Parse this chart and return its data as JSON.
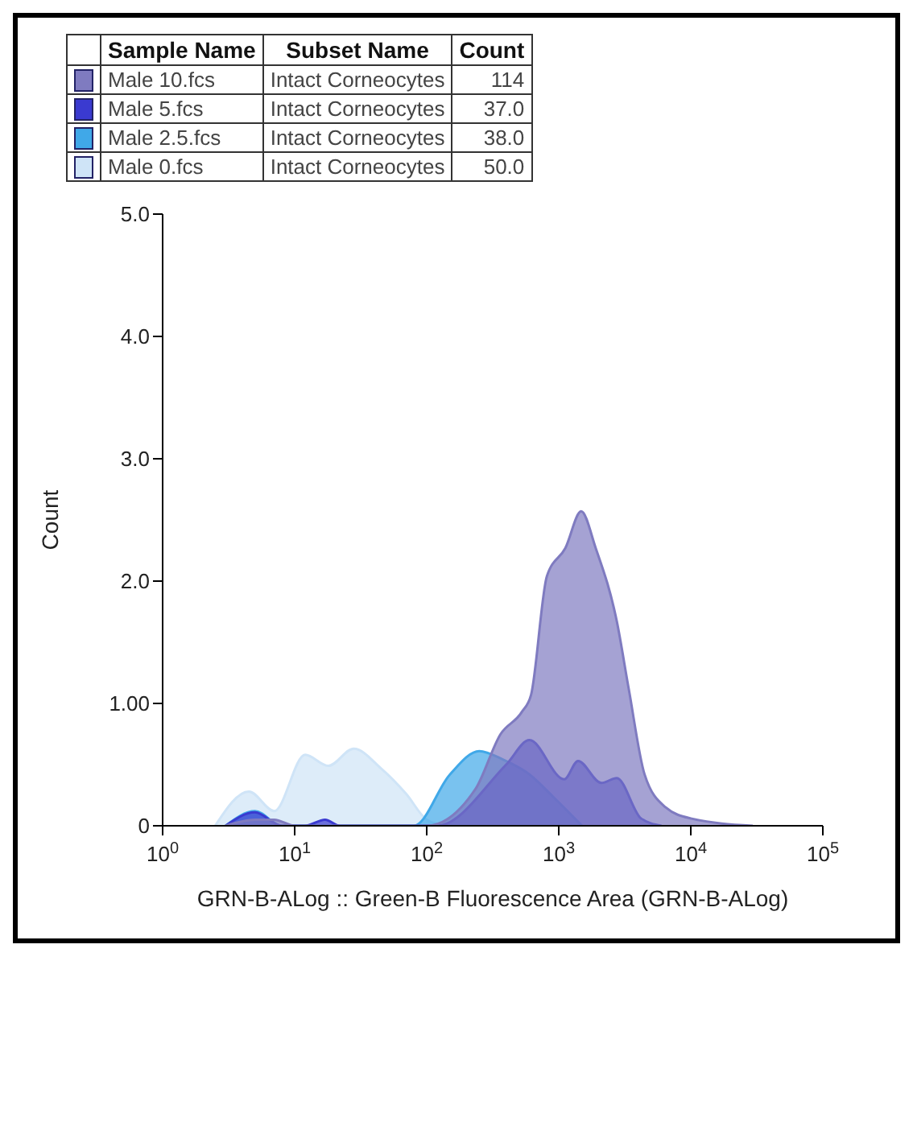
{
  "chart_data": {
    "type": "area",
    "xlabel": "GRN-B-ALog :: Green-B Fluorescence Area (GRN-B-ALog)",
    "ylabel": "Count",
    "log": "x",
    "legend": "top",
    "annotations": [
      "Sample Name",
      "Subset Name",
      "Count",
      "Intact Corneocytes",
      "114",
      "Intact Corneocytes",
      "37.0",
      "Intact Corneocytes",
      "38.0",
      "Intact Corneocytes",
      "50.0"
    ],
    "xlim": [
      1,
      100000
    ],
    "xticks": [
      {
        "value": 1,
        "label": "10$^{0}$"
      },
      {
        "value": 10,
        "label": "10$^{1}$"
      },
      {
        "value": 100,
        "label": "10$^{2}$"
      },
      {
        "value": 1000,
        "label": "10$^{3}$"
      },
      {
        "value": 10000,
        "label": "10$^{4}$"
      },
      {
        "value": 100000,
        "label": "10$^{5}$"
      }
    ],
    "ylim": [
      0,
      5
    ],
    "yticks": [
      0,
      {
        "value": 1,
        "label": "1.00"
      },
      {
        "value": 2,
        "label": "2.0"
      },
      {
        "value": 3,
        "label": "3.0"
      },
      {
        "value": 4,
        "label": "4.0"
      },
      {
        "value": 5,
        "label": "5.0"
      }
    ],
    "series": [
      {
        "name": "Male 10.fcs",
        "color": "#7f7bc0",
        "x": [
          3,
          5,
          7,
          10,
          100,
          234,
          363,
          525,
          617,
          813,
          1122,
          1479,
          1905,
          2754,
          3388,
          4467,
          6457,
          10000,
          29500
        ],
        "values": [
          0,
          0.05,
          0.05,
          0,
          0,
          0.3,
          0.75,
          0.93,
          1.07,
          2.04,
          2.27,
          2.57,
          2.27,
          1.67,
          1.12,
          0.42,
          0.15,
          0.06,
          0
        ]
      },
      {
        "name": "Male 5.fcs",
        "color": "#3a3ad0",
        "x": [
          3,
          5,
          8,
          12,
          17,
          22,
          120,
          400,
          600,
          1100,
          1400,
          2100,
          2750,
          4200,
          6000
        ],
        "values": [
          0,
          0.11,
          0,
          0,
          0.05,
          0,
          0,
          0.5,
          0.7,
          0.38,
          0.53,
          0.35,
          0.39,
          0.06,
          0
        ]
      },
      {
        "name": "Male 2.5.fcs",
        "color": "#40a8e8",
        "x": [
          3,
          5,
          8,
          80,
          150,
          250,
          380,
          600,
          900,
          1500
        ],
        "values": [
          0,
          0.12,
          0,
          0,
          0.42,
          0.61,
          0.54,
          0.42,
          0.24,
          0
        ]
      },
      {
        "name": "Male 0.fcs",
        "color": "#cfe4f7",
        "x": [
          2.5,
          4.5,
          7,
          12,
          18,
          28,
          45,
          70,
          100,
          140
        ],
        "values": [
          0,
          0.28,
          0.12,
          0.58,
          0.49,
          0.63,
          0.47,
          0.26,
          0.05,
          0
        ]
      }
    ]
  }
}
